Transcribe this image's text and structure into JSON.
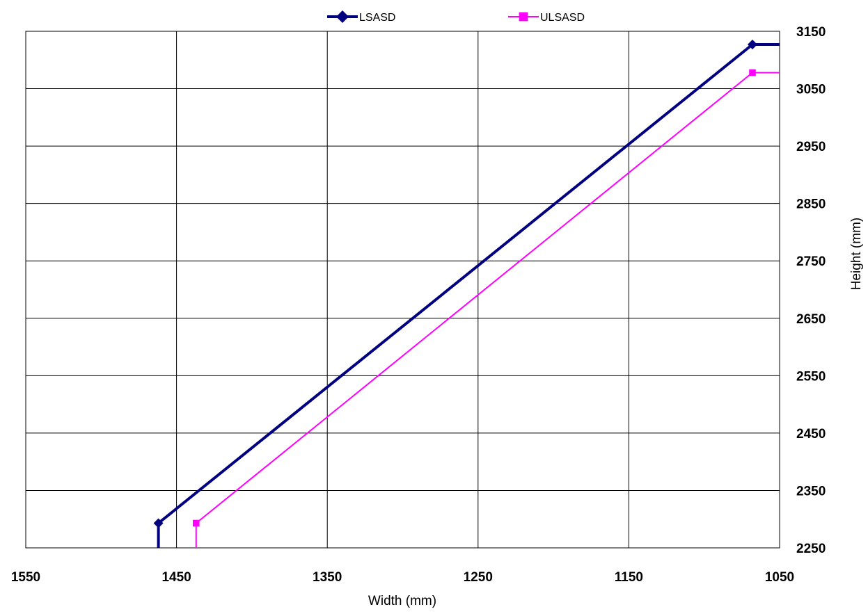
{
  "chart_data": {
    "type": "line",
    "xlabel": "Width (mm)",
    "ylabel": "Height (mm)",
    "x_reversed": true,
    "xlim": [
      1050,
      1550
    ],
    "ylim": [
      2250,
      3150
    ],
    "x_ticks": [
      1550,
      1450,
      1350,
      1250,
      1150,
      1050
    ],
    "y_ticks": [
      3150,
      3050,
      2950,
      2850,
      2750,
      2650,
      2550,
      2450,
      2350,
      2250
    ],
    "y_axis_position": "right",
    "grid": true,
    "legend_position": "top-center",
    "series": [
      {
        "name": "LSASD",
        "color": "#000080",
        "marker": "diamond",
        "marker_points": [
          [
            1462,
            2293
          ],
          [
            1068,
            3127
          ]
        ],
        "line_points": [
          [
            1462,
            2250
          ],
          [
            1462,
            2293
          ],
          [
            1068,
            3127
          ],
          [
            1050,
            3127
          ]
        ]
      },
      {
        "name": "ULSASD",
        "color": "#ff00ff",
        "marker": "square",
        "marker_points": [
          [
            1437,
            2293
          ],
          [
            1068,
            3078
          ]
        ],
        "line_points": [
          [
            1437,
            2250
          ],
          [
            1437,
            2293
          ],
          [
            1068,
            3078
          ],
          [
            1050,
            3078
          ]
        ]
      }
    ]
  }
}
